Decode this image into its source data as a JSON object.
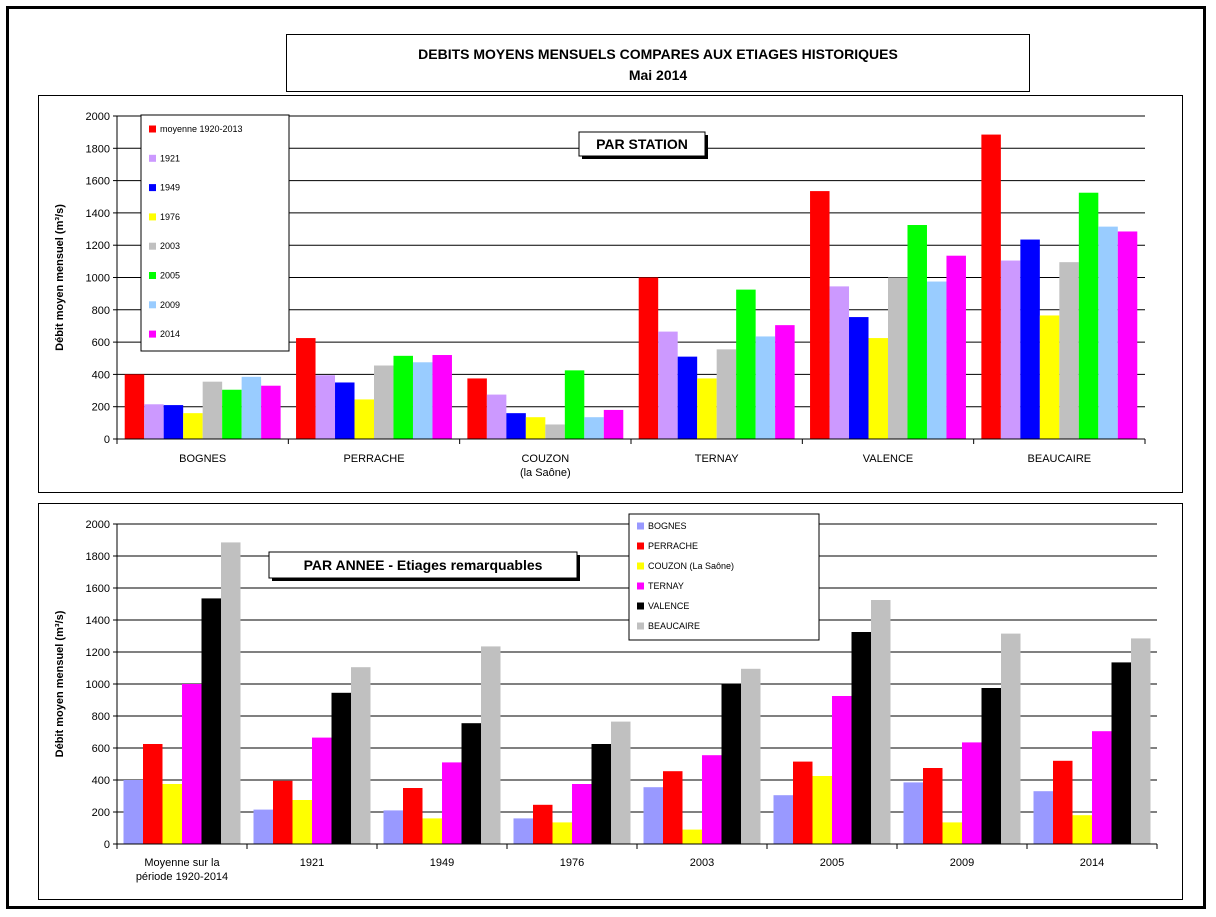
{
  "title": {
    "line1": "DEBITS MOYENS MENSUELS COMPARES AUX ETIAGES HISTORIQUES",
    "line2": "Mai 2014"
  },
  "chart_data": [
    {
      "type": "bar",
      "annotation": "PAR STATION",
      "ylabel": "Débit moyen mensuel (m³/s)",
      "ylim": [
        0,
        2000
      ],
      "yticks": [
        0,
        200,
        400,
        600,
        800,
        1000,
        1200,
        1400,
        1600,
        1800,
        2000
      ],
      "grid": true,
      "legend_position": "top-left",
      "categories": [
        [
          "BOGNES"
        ],
        [
          "PERRACHE"
        ],
        [
          "COUZON",
          "(la Saône)"
        ],
        [
          "TERNAY"
        ],
        [
          "VALENCE"
        ],
        [
          "BEAUCAIRE"
        ]
      ],
      "series": [
        {
          "name": "moyenne 1920-2013",
          "color": "#ff0000",
          "values": [
            400,
            625,
            375,
            1000,
            1535,
            1885
          ]
        },
        {
          "name": "1921",
          "color": "#cc99ff",
          "values": [
            215,
            395,
            275,
            665,
            945,
            1105
          ]
        },
        {
          "name": "1949",
          "color": "#0000ff",
          "values": [
            210,
            350,
            160,
            510,
            755,
            1235
          ]
        },
        {
          "name": "1976",
          "color": "#ffff00",
          "values": [
            160,
            245,
            135,
            375,
            625,
            765
          ]
        },
        {
          "name": "2003",
          "color": "#c0c0c0",
          "values": [
            355,
            455,
            90,
            555,
            1000,
            1095
          ]
        },
        {
          "name": "2005",
          "color": "#00ff00",
          "values": [
            305,
            515,
            425,
            925,
            1325,
            1525
          ]
        },
        {
          "name": "2009",
          "color": "#99ccff",
          "values": [
            385,
            475,
            135,
            635,
            975,
            1315
          ]
        },
        {
          "name": "2014",
          "color": "#ff00ff",
          "values": [
            330,
            520,
            180,
            705,
            1135,
            1285
          ]
        }
      ]
    },
    {
      "type": "bar",
      "annotation": "PAR ANNEE - Etiages remarquables",
      "ylabel": "Débit moyen mensuel (m³/s)",
      "ylim": [
        0,
        2000
      ],
      "yticks": [
        0,
        200,
        400,
        600,
        800,
        1000,
        1200,
        1400,
        1600,
        1800,
        2000
      ],
      "grid": true,
      "legend_position": "top-right",
      "categories": [
        [
          "Moyenne sur  la",
          "période 1920-2014"
        ],
        [
          "1921"
        ],
        [
          "1949"
        ],
        [
          "1976"
        ],
        [
          "2003"
        ],
        [
          "2005"
        ],
        [
          "2009"
        ],
        [
          "2014"
        ]
      ],
      "series": [
        {
          "name": "BOGNES",
          "color": "#9999ff",
          "values": [
            400,
            215,
            210,
            160,
            355,
            305,
            385,
            330
          ]
        },
        {
          "name": "PERRACHE",
          "color": "#ff0000",
          "values": [
            625,
            395,
            350,
            245,
            455,
            515,
            475,
            520
          ]
        },
        {
          "name": "COUZON (La Saône)",
          "color": "#ffff00",
          "values": [
            375,
            275,
            160,
            135,
            90,
            425,
            135,
            180
          ]
        },
        {
          "name": "TERNAY",
          "color": "#ff00ff",
          "values": [
            1000,
            665,
            510,
            375,
            555,
            925,
            635,
            705
          ]
        },
        {
          "name": "VALENCE",
          "color": "#000000",
          "values": [
            1535,
            945,
            755,
            625,
            1000,
            1325,
            975,
            1135
          ]
        },
        {
          "name": "BEAUCAIRE",
          "color": "#c0c0c0",
          "values": [
            1885,
            1105,
            1235,
            765,
            1095,
            1525,
            1315,
            1285
          ]
        }
      ]
    }
  ]
}
